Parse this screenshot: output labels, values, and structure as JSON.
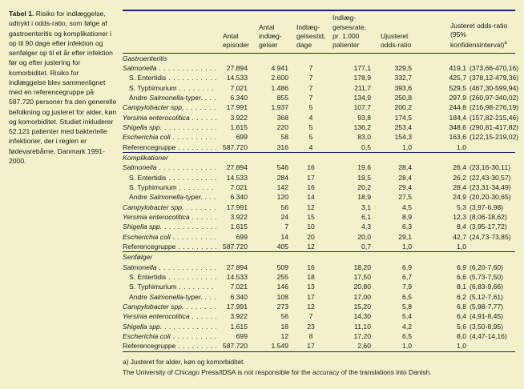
{
  "caption": {
    "label": "Tabel 1.",
    "text": "Risiko for indlæggelse, udtrykt i odds-ratio, som følge af gastroenteritis og komplikationer i op til 90 dage efter infektion og senfølger op til et år efter infektion før og efter justering for komorbiditet. Risiko for indlæggelse blev sammenlignet med en referencegruppe på 587.720 personer fra den generelle befolkning og justeret for alder, køn og komorbiditet. Studiet inkluderer 52.121 patienter med bakterielle infektioner, der i reglen er fødevarebårne, Danmark 1991-2000."
  },
  "headers": {
    "episodes": [
      "Antal",
      "episoder"
    ],
    "admissions": [
      "Antal",
      "indlæg-",
      "gelser"
    ],
    "stay": [
      "Indlæg-",
      "gelsestid,",
      "dage"
    ],
    "rate": [
      "Indlæg-",
      "gelsesrate,",
      "pr. 1.000",
      "patienter"
    ],
    "crude": [
      "Ujusteret",
      "odds-ratio"
    ],
    "adjusted": [
      "Justeret odds-ratio",
      "(95% konfidensinterval)",
      "a"
    ]
  },
  "sections": [
    {
      "title": "Gastroenteritis",
      "rows": [
        {
          "pre": "",
          "it": "Salmonella",
          "post": "",
          "indent": false,
          "v": [
            "27.894",
            "4.941",
            "7",
            "177,1",
            "329,5",
            "419,1",
            "(373,66-470,16)"
          ]
        },
        {
          "pre": "S. Entertidis",
          "it": "",
          "post": "",
          "indent": true,
          "v": [
            "14.533",
            "2.600",
            "7",
            "178,9",
            "332,7",
            "425,7",
            "(378,12-479,36)"
          ]
        },
        {
          "pre": "S. Typhimurium",
          "it": "",
          "post": "",
          "indent": true,
          "v": [
            "7.021",
            "1.486",
            "7",
            "211,7",
            "393,6",
            "529,5",
            "(467,30-599,94)"
          ]
        },
        {
          "pre": "Andre ",
          "it": "Salmonella",
          "post": "-typer.",
          "indent": true,
          "v": [
            "6.340",
            "855",
            "7",
            "134,9",
            "250,8",
            "297,9",
            "(260,97-340,02)"
          ]
        },
        {
          "pre": "",
          "it": "Campylobacter spp.",
          "post": "",
          "indent": false,
          "v": [
            "17.991",
            "1.937",
            "5",
            "107,7",
            "200,2",
            "244,8",
            "(216,98-276,19)"
          ]
        },
        {
          "pre": "",
          "it": "Yersinia enterocolitica",
          "post": "",
          "indent": false,
          "v": [
            "3.922",
            "368",
            "4",
            "93,8",
            "174,5",
            "184,4",
            "(157,82-215,46)"
          ]
        },
        {
          "pre": "",
          "it": "Shigella spp.",
          "post": "",
          "indent": false,
          "v": [
            "1.615",
            "220",
            "5",
            "136,2",
            "253,4",
            "348,6",
            "(290,81-417,82)"
          ]
        },
        {
          "pre": "",
          "it": "Escherichia coli",
          "post": "",
          "indent": false,
          "v": [
            "699",
            "58",
            "5",
            "83,0",
            "154,3",
            "163,6",
            "(122,15-219,02)"
          ]
        },
        {
          "pre": "Referencegruppe",
          "it": "",
          "post": "",
          "indent": false,
          "v": [
            "587.720",
            "316",
            "4",
            "0,5",
            "1,0",
            "1,0",
            ""
          ]
        }
      ]
    },
    {
      "title": "Komplikationer",
      "rows": [
        {
          "pre": "",
          "it": "Salmonella",
          "post": "",
          "indent": false,
          "v": [
            "27.894",
            "546",
            "16",
            "19,6",
            "28,4",
            "26,4",
            "(23,16-30,11)"
          ]
        },
        {
          "pre": "S. Entertidis",
          "it": "",
          "post": "",
          "indent": true,
          "v": [
            "14.533",
            "284",
            "17",
            "19,5",
            "28,4",
            "26,2",
            "(22,43-30,57)"
          ]
        },
        {
          "pre": "S. Typhimurium",
          "it": "",
          "post": "",
          "indent": true,
          "v": [
            "7.021",
            "142",
            "16",
            "20,2",
            "29,4",
            "28,4",
            "(23,31-34,49)"
          ]
        },
        {
          "pre": "Andre ",
          "it": "Salmonella",
          "post": "-typer.",
          "indent": true,
          "v": [
            "6.340",
            "120",
            "14",
            "18,9",
            "27,5",
            "24,9",
            "(20,20-30,65)"
          ]
        },
        {
          "pre": "",
          "it": "Campylobacter spp.",
          "post": "",
          "indent": false,
          "v": [
            "17.991",
            "56",
            "12",
            "3,1",
            "4,5",
            "5,3",
            "(3,97-6,98)"
          ]
        },
        {
          "pre": "",
          "it": "Yersinia enterocolitica",
          "post": "",
          "indent": false,
          "v": [
            "3.922",
            "24",
            "15",
            "6,1",
            "8,9",
            "12,3",
            "(8,06-18,62)"
          ]
        },
        {
          "pre": "",
          "it": "Shigella spp.",
          "post": "",
          "indent": false,
          "v": [
            "1.615",
            "7",
            "10",
            "4,3",
            "6,3",
            "8,4",
            "(3,95-17,72)"
          ]
        },
        {
          "pre": "",
          "it": "Escherichia coli",
          "post": "",
          "indent": false,
          "v": [
            "699",
            "14",
            "20",
            "20,0",
            "29,1",
            "42,7",
            "(24,73-73,85)"
          ]
        },
        {
          "pre": "Referencegruppe",
          "it": "",
          "post": "",
          "indent": false,
          "v": [
            "587.720",
            "405",
            "12",
            "0,7",
            "1,0",
            "1,0",
            ""
          ]
        }
      ]
    },
    {
      "title": "Senfølger",
      "rows": [
        {
          "pre": "",
          "it": "Salmonella",
          "post": "",
          "indent": false,
          "v": [
            "27.894",
            "509",
            "16",
            "18,20",
            "6,9",
            "6,9",
            "(6,20-7,60)"
          ]
        },
        {
          "pre": "S. Entertidis",
          "it": "",
          "post": "",
          "indent": true,
          "v": [
            "14.533",
            "255",
            "18",
            "17,50",
            "6,7",
            "6,6",
            "(5,73-7,50)"
          ]
        },
        {
          "pre": "S. Typhimurium",
          "it": "",
          "post": "",
          "indent": true,
          "v": [
            "7.021",
            "146",
            "13",
            "20,80",
            "7,9",
            "8,1",
            "(6,83-9,66)"
          ]
        },
        {
          "pre": "Andre ",
          "it": "Salmonella",
          "post": "-typer.",
          "indent": true,
          "v": [
            "6.340",
            "108",
            "17",
            "17,00",
            "6,5",
            "6,2",
            "(5,12-7,61)"
          ]
        },
        {
          "pre": "",
          "it": "Campylobacter spp.",
          "post": "",
          "indent": false,
          "v": [
            "17.991",
            "273",
            "12",
            "15,20",
            "5,8",
            "6,8",
            "(5,98-7,77)"
          ]
        },
        {
          "pre": "",
          "it": "Yersinia enterocolitica",
          "post": "",
          "indent": false,
          "v": [
            "3.922",
            "56",
            "7",
            "14,30",
            "5,4",
            "6,4",
            "(4,91-8,45)"
          ]
        },
        {
          "pre": "",
          "it": "Shigella spp.",
          "post": "",
          "indent": false,
          "v": [
            "1.615",
            "18",
            "23",
            "11,10",
            "4,2",
            "5,6",
            "(3,50-8,95)"
          ]
        },
        {
          "pre": "",
          "it": "Escherichia coli",
          "post": "",
          "indent": false,
          "v": [
            "699",
            "12",
            "8",
            "17,20",
            "6,5",
            "8,0",
            "(4,47-14,16)"
          ]
        },
        {
          "pre": "Referencegruppe",
          "it": "",
          "post": "",
          "indent": false,
          "v": [
            "587.720",
            "1.549",
            "17",
            "2,60",
            "1,0",
            "1,0",
            ""
          ]
        }
      ]
    }
  ],
  "footnotes": [
    "a) Justeret for alder, køn og komorbiditet.",
    "The University of Chicago Press/IDSA is not responsible for the accuracy of the translations into Danish."
  ]
}
